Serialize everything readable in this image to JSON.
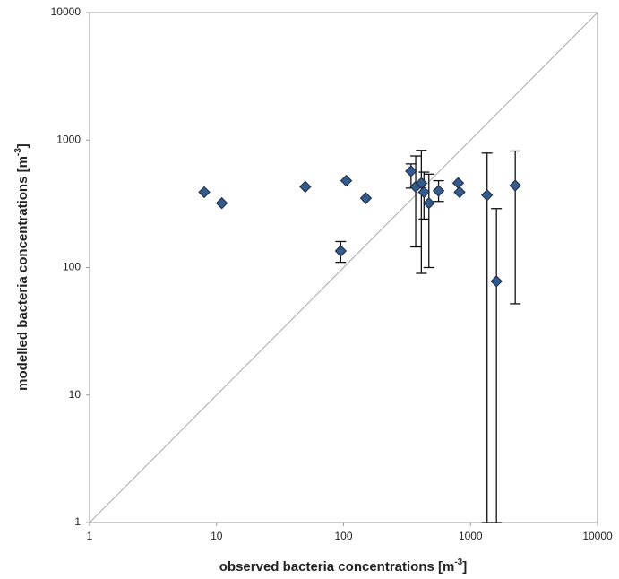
{
  "chart_data": {
    "type": "scatter",
    "x_label": "observed bacteria concentrations [m",
    "x_label_sup": "-3",
    "x_label_end": "]",
    "y_label": "modelled bacteria concentrations [m",
    "y_label_sup": "-3",
    "y_label_end": "]",
    "log_x": true,
    "log_y": true,
    "grid": false,
    "color": "#355a8c",
    "xlim": [
      1,
      10000
    ],
    "ylim": [
      1,
      10000
    ],
    "xticks": [
      1,
      10,
      100,
      1000,
      10000
    ],
    "yticks": [
      1,
      10,
      100,
      1000,
      10000
    ],
    "x": [
      8,
      11,
      50,
      95,
      105,
      150,
      340,
      370,
      410,
      430,
      470,
      560,
      800,
      820,
      1350,
      1600,
      2250
    ],
    "values": [
      390,
      320,
      430,
      135,
      480,
      350,
      570,
      430,
      460,
      390,
      320,
      400,
      460,
      390,
      370,
      78,
      440
    ],
    "y_lower": [
      null,
      null,
      null,
      110,
      null,
      null,
      420,
      145,
      90,
      240,
      100,
      330,
      null,
      null,
      1,
      1,
      52
    ],
    "y_upper": [
      null,
      null,
      null,
      160,
      null,
      null,
      650,
      750,
      830,
      560,
      540,
      480,
      null,
      null,
      790,
      290,
      820
    ]
  }
}
